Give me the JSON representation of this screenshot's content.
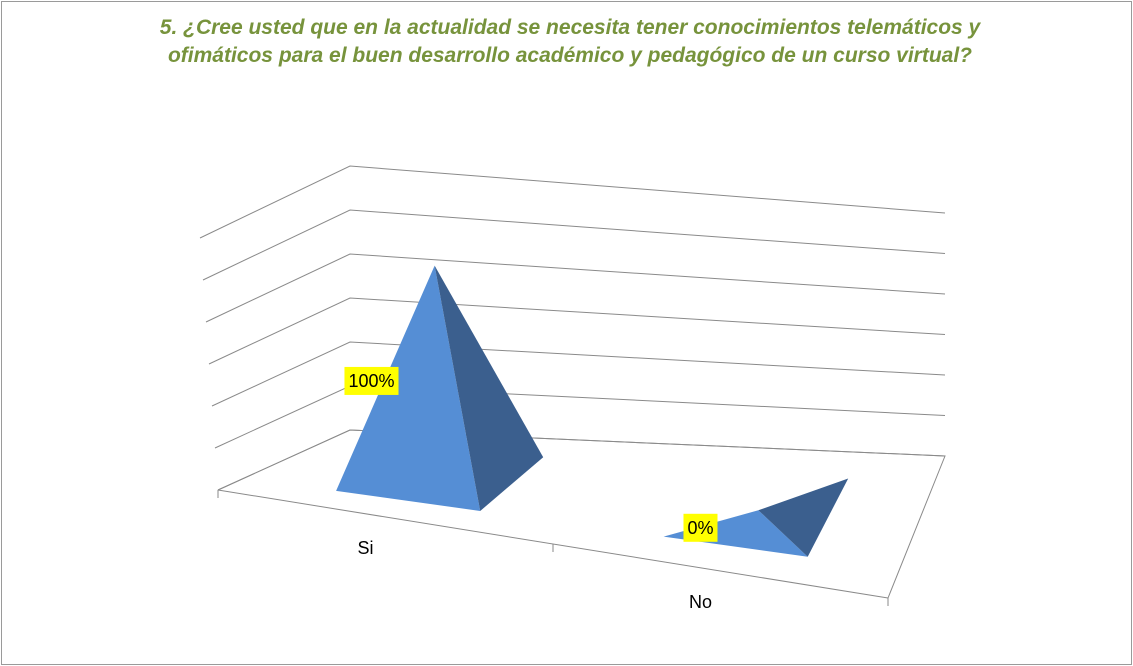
{
  "chart_data": {
    "type": "pyramid3d",
    "title": "5. ¿Cree usted que en la actualidad se necesita tener conocimientos telemáticos y ofimáticos para el buen desarrollo académico y pedagógico de un curso virtual?",
    "categories": [
      "Si",
      "No"
    ],
    "values": [
      100,
      0
    ],
    "value_labels": [
      "100%",
      "0%"
    ],
    "color": "#558ed5",
    "ylim": [
      0,
      120
    ],
    "yticks": [
      0,
      20,
      40,
      60,
      80,
      100,
      120
    ],
    "grid": true
  }
}
